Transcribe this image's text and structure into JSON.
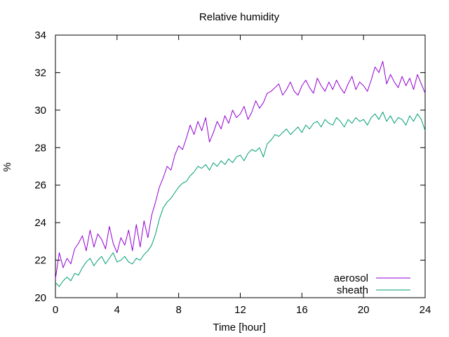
{
  "chart_data": {
    "type": "line",
    "title": "Relative humidity",
    "xlabel": "Time [hour]",
    "ylabel": "%",
    "xlim": [
      0,
      24
    ],
    "ylim": [
      20,
      34
    ],
    "xticks": [
      0,
      4,
      8,
      12,
      16,
      20,
      24
    ],
    "yticks": [
      20,
      22,
      24,
      26,
      28,
      30,
      32,
      34
    ],
    "grid": false,
    "legend_position": "bottom-right",
    "series": [
      {
        "name": "aerosol",
        "color": "#9400d3",
        "x": [
          0,
          0.25,
          0.5,
          0.75,
          1,
          1.25,
          1.5,
          1.75,
          2,
          2.25,
          2.5,
          2.75,
          3,
          3.25,
          3.5,
          3.75,
          4,
          4.25,
          4.5,
          4.75,
          5,
          5.25,
          5.5,
          5.75,
          6,
          6.25,
          6.5,
          6.75,
          7,
          7.25,
          7.5,
          7.75,
          8,
          8.25,
          8.5,
          8.75,
          9,
          9.25,
          9.5,
          9.75,
          10,
          10.25,
          10.5,
          10.75,
          11,
          11.25,
          11.5,
          11.75,
          12,
          12.25,
          12.5,
          12.75,
          13,
          13.25,
          13.5,
          13.75,
          14,
          14.25,
          14.5,
          14.75,
          15,
          15.25,
          15.5,
          15.75,
          16,
          16.25,
          16.5,
          16.75,
          17,
          17.25,
          17.5,
          17.75,
          18,
          18.25,
          18.5,
          18.75,
          19,
          19.25,
          19.5,
          19.75,
          20,
          20.25,
          20.5,
          20.75,
          21,
          21.25,
          21.5,
          21.75,
          22,
          22.25,
          22.5,
          22.75,
          23,
          23.25,
          23.5,
          23.75,
          24
        ],
        "values": [
          21.0,
          22.4,
          21.6,
          22.1,
          21.8,
          22.6,
          22.9,
          23.3,
          22.5,
          23.6,
          22.7,
          23.4,
          23.1,
          22.6,
          23.8,
          22.9,
          22.4,
          23.2,
          22.8,
          23.6,
          22.5,
          23.9,
          22.7,
          24.1,
          23.2,
          24.4,
          25.1,
          25.9,
          26.4,
          27.0,
          26.8,
          27.6,
          28.1,
          27.9,
          28.5,
          29.2,
          28.7,
          29.4,
          28.9,
          29.6,
          28.3,
          28.8,
          29.4,
          29.0,
          29.7,
          29.3,
          30.0,
          29.6,
          29.8,
          30.2,
          29.5,
          29.9,
          30.5,
          30.1,
          30.4,
          30.9,
          31.0,
          31.2,
          31.4,
          30.8,
          31.1,
          31.5,
          31.0,
          30.8,
          31.3,
          31.6,
          31.2,
          30.9,
          31.7,
          31.3,
          31.0,
          31.5,
          31.1,
          31.6,
          31.2,
          30.9,
          31.4,
          31.8,
          31.1,
          31.5,
          31.3,
          31.0,
          31.6,
          32.3,
          32.0,
          32.6,
          31.4,
          31.9,
          31.5,
          31.2,
          31.8,
          31.3,
          31.7,
          31.1,
          31.9,
          31.4,
          30.9
        ]
      },
      {
        "name": "sheath",
        "color": "#009e73",
        "x": [
          0,
          0.25,
          0.5,
          0.75,
          1,
          1.25,
          1.5,
          1.75,
          2,
          2.25,
          2.5,
          2.75,
          3,
          3.25,
          3.5,
          3.75,
          4,
          4.25,
          4.5,
          4.75,
          5,
          5.25,
          5.5,
          5.75,
          6,
          6.25,
          6.5,
          6.75,
          7,
          7.25,
          7.5,
          7.75,
          8,
          8.25,
          8.5,
          8.75,
          9,
          9.25,
          9.5,
          9.75,
          10,
          10.25,
          10.5,
          10.75,
          11,
          11.25,
          11.5,
          11.75,
          12,
          12.25,
          12.5,
          12.75,
          13,
          13.25,
          13.5,
          13.75,
          14,
          14.25,
          14.5,
          14.75,
          15,
          15.25,
          15.5,
          15.75,
          16,
          16.25,
          16.5,
          16.75,
          17,
          17.25,
          17.5,
          17.75,
          18,
          18.25,
          18.5,
          18.75,
          19,
          19.25,
          19.5,
          19.75,
          20,
          20.25,
          20.5,
          20.75,
          21,
          21.25,
          21.5,
          21.75,
          22,
          22.25,
          22.5,
          22.75,
          23,
          23.25,
          23.5,
          23.75,
          24
        ],
        "values": [
          20.8,
          20.6,
          20.9,
          21.1,
          20.9,
          21.3,
          21.2,
          21.6,
          21.9,
          22.1,
          21.7,
          22.0,
          22.2,
          21.8,
          22.1,
          22.4,
          21.9,
          22.0,
          22.2,
          21.9,
          21.8,
          22.1,
          22.0,
          22.3,
          22.5,
          22.8,
          23.4,
          24.2,
          24.8,
          25.1,
          25.3,
          25.6,
          25.9,
          26.1,
          26.2,
          26.5,
          26.7,
          27.0,
          26.9,
          27.1,
          26.8,
          27.2,
          27.0,
          27.3,
          27.1,
          27.4,
          27.2,
          27.5,
          27.6,
          27.3,
          27.7,
          27.9,
          27.8,
          28.0,
          27.5,
          28.2,
          28.4,
          28.7,
          28.6,
          28.8,
          29.0,
          28.7,
          28.9,
          29.1,
          28.8,
          29.2,
          29.0,
          29.3,
          29.4,
          29.1,
          29.5,
          29.3,
          29.2,
          29.6,
          29.4,
          29.1,
          29.5,
          29.3,
          29.6,
          29.4,
          29.5,
          29.2,
          29.6,
          29.8,
          29.5,
          29.9,
          29.4,
          29.7,
          29.3,
          29.6,
          29.5,
          29.2,
          29.7,
          29.4,
          29.8,
          29.5,
          28.9
        ]
      }
    ]
  }
}
